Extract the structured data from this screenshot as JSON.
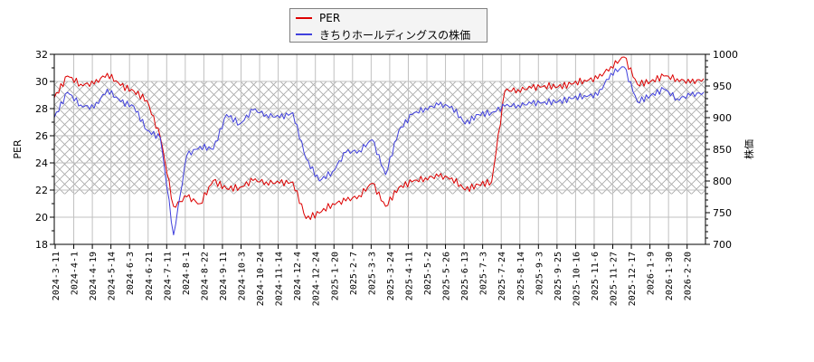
{
  "legend": {
    "items": [
      {
        "label": "PER",
        "color": "#dd0000"
      },
      {
        "label": "きちりホールディングスの株価",
        "color": "#4040dd"
      }
    ]
  },
  "axes": {
    "left_label": "PER",
    "right_label": "株価",
    "left_ticks": [
      "32",
      "30",
      "28",
      "26",
      "24",
      "22",
      "20",
      "18"
    ],
    "right_ticks": [
      "1000",
      "950",
      "900",
      "850",
      "800",
      "750",
      "700"
    ]
  },
  "chart_data": {
    "type": "line",
    "title": "",
    "xlabel": "",
    "ylabel": "PER",
    "y2label": "株価",
    "ylim": [
      18,
      32
    ],
    "y2lim": [
      700,
      1000
    ],
    "grid": true,
    "legend_position": "top-center",
    "shaded_band": {
      "axis": "left",
      "from": 21.7,
      "to": 30,
      "pattern": "crosshatch"
    },
    "x_ticks": [
      "2024-3-11",
      "2024-4-1",
      "2024-4-19",
      "2024-5-14",
      "2024-6-3",
      "2024-6-21",
      "2024-7-11",
      "2024-8-1",
      "2024-8-22",
      "2024-9-11",
      "2024-10-3",
      "2024-10-24",
      "2024-11-14",
      "2024-12-4",
      "2024-12-24",
      "2025-1-20",
      "2025-2-7",
      "2025-3-3",
      "2025-3-24",
      "2025-4-11",
      "2025-5-2",
      "2025-5-26",
      "2025-6-13",
      "2025-7-3",
      "2025-7-24",
      "2025-8-14",
      "2025-9-3",
      "2025-9-25",
      "2025-10-16",
      "2025-11-6",
      "2025-11-27",
      "2025-12-17",
      "2026-1-9",
      "2026-1-30",
      "2026-2-20"
    ],
    "series": [
      {
        "name": "PER",
        "axis": "left",
        "color": "#dd0000",
        "values": [
          28.8,
          30.4,
          29.8,
          29.8,
          30.6,
          29.7,
          29.3,
          28.6,
          25.9,
          20.8,
          21.5,
          21.0,
          22.7,
          22.1,
          22.2,
          22.7,
          22.6,
          22.5,
          22.6,
          19.9,
          20.3,
          21.0,
          21.2,
          21.6,
          22.5,
          20.8,
          22.2,
          22.6,
          22.9,
          23.0,
          22.9,
          22.0,
          22.4,
          22.6,
          29.3,
          29.4,
          29.5,
          29.7,
          29.6,
          29.8,
          30.1,
          30.2,
          31.1,
          31.8,
          29.8,
          30.0,
          30.4,
          30.2,
          29.9,
          30.2
        ]
      },
      {
        "name": "きちりホールディングスの株価",
        "axis": "right",
        "color": "#4040dd",
        "values": [
          900,
          940,
          920,
          915,
          945,
          925,
          918,
          880,
          868,
          715,
          840,
          855,
          850,
          905,
          890,
          912,
          905,
          900,
          908,
          835,
          800,
          815,
          845,
          848,
          865,
          810,
          880,
          905,
          915,
          920,
          918,
          890,
          905,
          908,
          918,
          920,
          922,
          925,
          925,
          930,
          935,
          935,
          970,
          980,
          925,
          935,
          945,
          930,
          935,
          940
        ]
      }
    ]
  }
}
